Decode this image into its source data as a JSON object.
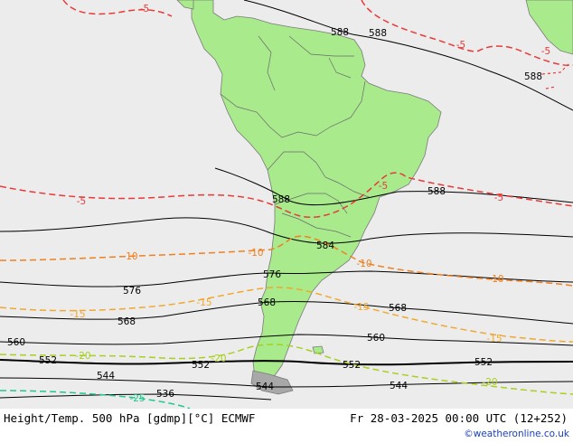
{
  "map": {
    "colors": {
      "ocean": "#ececec",
      "land": "#a8ea8c",
      "coast": "#808080",
      "height": "#000000",
      "t_m5": "#e83a3a",
      "t_m10": "#f08020",
      "t_m15": "#f0a830",
      "t_m20": "#a8d020",
      "t_m25": "#20c890"
    },
    "height_labels": [
      "588",
      "588",
      "588",
      "588",
      "588",
      "584",
      "576",
      "576",
      "568",
      "568",
      "568",
      "560",
      "560",
      "552",
      "552",
      "552",
      "552",
      "544",
      "544",
      "544",
      "536"
    ],
    "temp_labels": [
      "-5",
      "-5",
      "-5",
      "-5",
      "-5",
      "-5",
      "-10",
      "-10",
      "-10",
      "-10",
      "-15",
      "-15",
      "-15",
      "-15",
      "-20",
      "-20",
      "-20",
      "-25"
    ]
  },
  "footer": {
    "title": "Height/Temp. 500 hPa [gdmp][°C] ECMWF",
    "datetime": "Fr 28-03-2025 00:00 UTC (12+252)",
    "credit": "©weatheronline.co.uk"
  }
}
